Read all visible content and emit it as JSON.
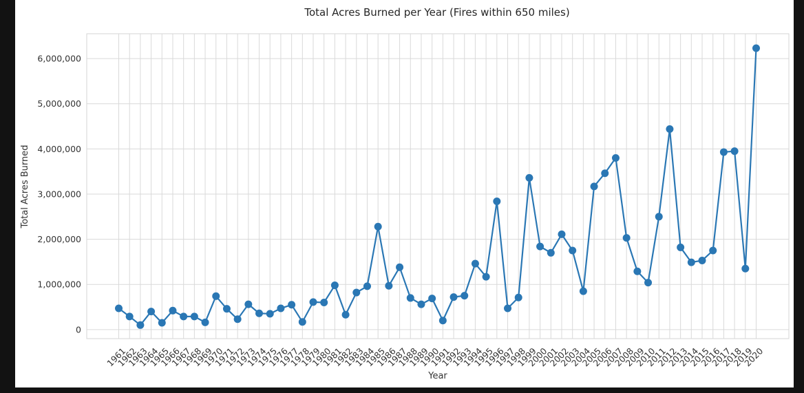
{
  "chart_data": {
    "type": "line",
    "title": "Total Acres Burned per Year (Fires within 650 miles)",
    "xlabel": "Year",
    "ylabel": "Total Acres Burned",
    "ylim": [
      -200000,
      6550000
    ],
    "yticks": [
      0,
      1000000,
      2000000,
      3000000,
      4000000,
      5000000,
      6000000
    ],
    "ytick_labels": [
      "0",
      "1,000,000",
      "2,000,000",
      "3,000,000",
      "4,000,000",
      "5,000,000",
      "6,000,000"
    ],
    "grid": true,
    "line_color": "#2a77b4",
    "x": [
      1961,
      1962,
      1963,
      1964,
      1965,
      1966,
      1967,
      1968,
      1969,
      1970,
      1971,
      1972,
      1973,
      1974,
      1975,
      1976,
      1977,
      1978,
      1979,
      1980,
      1981,
      1982,
      1983,
      1984,
      1985,
      1986,
      1987,
      1988,
      1989,
      1990,
      1991,
      1992,
      1993,
      1994,
      1995,
      1996,
      1997,
      1998,
      1999,
      2000,
      2001,
      2002,
      2003,
      2004,
      2005,
      2006,
      2007,
      2008,
      2009,
      2010,
      2011,
      2012,
      2013,
      2014,
      2015,
      2016,
      2017,
      2018,
      2019,
      2020
    ],
    "values": [
      470000,
      290000,
      100000,
      400000,
      150000,
      420000,
      290000,
      290000,
      160000,
      740000,
      460000,
      230000,
      560000,
      360000,
      350000,
      470000,
      550000,
      170000,
      610000,
      600000,
      980000,
      330000,
      820000,
      960000,
      2280000,
      970000,
      1380000,
      700000,
      560000,
      690000,
      200000,
      720000,
      750000,
      1460000,
      1170000,
      2840000,
      470000,
      710000,
      3360000,
      1840000,
      1700000,
      2110000,
      1750000,
      850000,
      3170000,
      3460000,
      3800000,
      2030000,
      1290000,
      1040000,
      2500000,
      4440000,
      1820000,
      1490000,
      1530000,
      1750000,
      3930000,
      3950000,
      1350000,
      6230000
    ]
  }
}
